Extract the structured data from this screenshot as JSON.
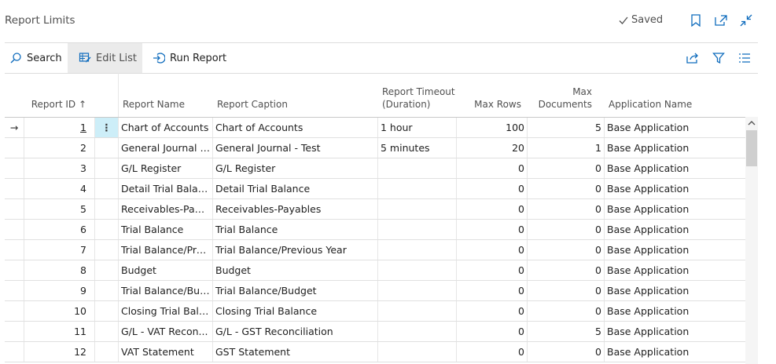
{
  "page": {
    "title": "Report Limits",
    "saved_label": "Saved"
  },
  "header_icons": [
    "bookmark-icon",
    "open-new-window-icon",
    "collapse-icon"
  ],
  "actions": {
    "search_label": "Search",
    "edit_list_label": "Edit List",
    "run_report_label": "Run Report"
  },
  "action_icons": [
    "share-icon",
    "filter-icon",
    "list-view-icon"
  ],
  "table": {
    "columns": {
      "report_id": "Report ID ↑",
      "report_name": "Report Name",
      "report_caption": "Report Caption",
      "timeout_line1": "Report Timeout",
      "timeout_line2": "(Duration)",
      "max_rows": "Max Rows",
      "max_docs_line1": "Max",
      "max_docs_line2": "Documents",
      "app_name": "Application Name"
    },
    "current_row_indicator": "→",
    "row_menu_glyph": "⋮",
    "rows": [
      {
        "id": "1",
        "name": "Chart of Accounts",
        "caption": "Chart of Accounts",
        "timeout": "1 hour",
        "max_rows": "100",
        "max_docs": "5",
        "app": "Base Application"
      },
      {
        "id": "2",
        "name": "General Journal -...",
        "caption": "General Journal - Test",
        "timeout": "5 minutes",
        "max_rows": "20",
        "max_docs": "1",
        "app": "Base Application"
      },
      {
        "id": "3",
        "name": "G/L Register",
        "caption": "G/L Register",
        "timeout": "",
        "max_rows": "0",
        "max_docs": "0",
        "app": "Base Application"
      },
      {
        "id": "4",
        "name": "Detail Trial Balance",
        "caption": "Detail Trial Balance",
        "timeout": "",
        "max_rows": "0",
        "max_docs": "0",
        "app": "Base Application"
      },
      {
        "id": "5",
        "name": "Receivables-Paya...",
        "caption": "Receivables-Payables",
        "timeout": "",
        "max_rows": "0",
        "max_docs": "0",
        "app": "Base Application"
      },
      {
        "id": "6",
        "name": "Trial Balance",
        "caption": "Trial Balance",
        "timeout": "",
        "max_rows": "0",
        "max_docs": "0",
        "app": "Base Application"
      },
      {
        "id": "7",
        "name": "Trial Balance/Pre...",
        "caption": "Trial Balance/Previous Year",
        "timeout": "",
        "max_rows": "0",
        "max_docs": "0",
        "app": "Base Application"
      },
      {
        "id": "8",
        "name": "Budget",
        "caption": "Budget",
        "timeout": "",
        "max_rows": "0",
        "max_docs": "0",
        "app": "Base Application"
      },
      {
        "id": "9",
        "name": "Trial Balance/Bud...",
        "caption": "Trial Balance/Budget",
        "timeout": "",
        "max_rows": "0",
        "max_docs": "0",
        "app": "Base Application"
      },
      {
        "id": "10",
        "name": "Closing Trial Bala...",
        "caption": "Closing Trial Balance",
        "timeout": "",
        "max_rows": "0",
        "max_docs": "0",
        "app": "Base Application"
      },
      {
        "id": "11",
        "name": "G/L - VAT Recon...",
        "caption": "G/L - GST Reconciliation",
        "timeout": "",
        "max_rows": "0",
        "max_docs": "5",
        "app": "Base Application"
      },
      {
        "id": "12",
        "name": "VAT Statement",
        "caption": "GST Statement",
        "timeout": "",
        "max_rows": "0",
        "max_docs": "0",
        "app": "Base Application"
      }
    ]
  },
  "colors": {
    "accent": "#0f6cbd",
    "selected_menu_bg": "#cdeef8",
    "active_action_bg": "#ebebeb"
  }
}
